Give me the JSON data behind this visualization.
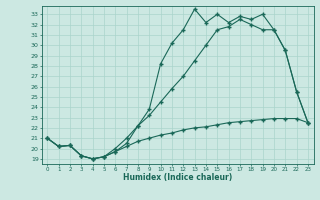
{
  "xlabel": "Humidex (Indice chaleur)",
  "bg_color": "#cce8e2",
  "grid_color": "#aad4cc",
  "line_color": "#1a6858",
  "xlim": [
    -0.5,
    23.5
  ],
  "ylim": [
    18.5,
    33.8
  ],
  "xticks": [
    0,
    1,
    2,
    3,
    4,
    5,
    6,
    7,
    8,
    9,
    10,
    11,
    12,
    13,
    14,
    15,
    16,
    17,
    18,
    19,
    20,
    21,
    22,
    23
  ],
  "yticks": [
    19,
    20,
    21,
    22,
    23,
    24,
    25,
    26,
    27,
    28,
    29,
    30,
    31,
    32,
    33
  ],
  "curve1_x": [
    0,
    1,
    2,
    3,
    4,
    5,
    6,
    7,
    8,
    9,
    10,
    11,
    12,
    13,
    14,
    15,
    16,
    17,
    18,
    19,
    20,
    21,
    22,
    23
  ],
  "curve1_y": [
    21.0,
    20.2,
    20.3,
    19.3,
    19.0,
    19.2,
    19.7,
    20.2,
    20.7,
    21.0,
    21.3,
    21.5,
    21.8,
    22.0,
    22.1,
    22.3,
    22.5,
    22.6,
    22.7,
    22.8,
    22.9,
    22.9,
    22.9,
    22.5
  ],
  "curve2_x": [
    0,
    1,
    2,
    3,
    4,
    5,
    6,
    7,
    8,
    9,
    10,
    11,
    12,
    13,
    14,
    15,
    16,
    17,
    18,
    19,
    20,
    21,
    22,
    23
  ],
  "curve2_y": [
    21.0,
    20.2,
    20.3,
    19.3,
    19.0,
    19.2,
    20.0,
    21.0,
    22.2,
    23.2,
    24.5,
    25.8,
    27.0,
    28.5,
    30.0,
    31.5,
    31.8,
    32.5,
    32.0,
    31.5,
    31.5,
    29.5,
    25.5,
    22.5
  ],
  "curve3_x": [
    0,
    1,
    2,
    3,
    4,
    5,
    6,
    7,
    8,
    9,
    10,
    11,
    12,
    13,
    14,
    15,
    16,
    17,
    18,
    19,
    20,
    21,
    22,
    23
  ],
  "curve3_y": [
    21.0,
    20.2,
    20.3,
    19.3,
    19.0,
    19.2,
    19.7,
    20.5,
    22.2,
    23.8,
    28.2,
    30.2,
    31.5,
    33.5,
    32.2,
    33.0,
    32.2,
    32.8,
    32.5,
    33.0,
    31.5,
    29.5,
    25.5,
    22.5
  ]
}
